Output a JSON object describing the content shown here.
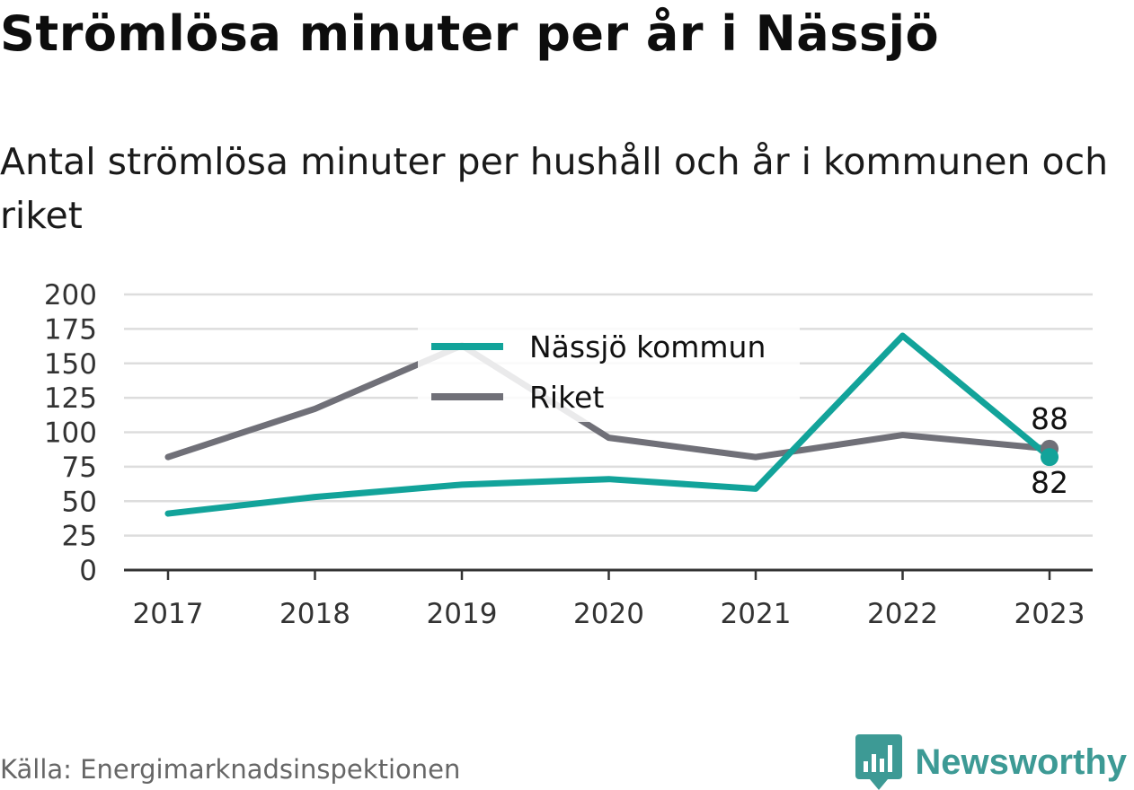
{
  "title": "Strömlösa minuter per år i Nässjö",
  "subtitle": "Antal strömlösa minuter per hushåll och år i kommunen och riket",
  "source": "Källa: Energimarknadsinspektionen",
  "brand": {
    "name": "Newsworthy",
    "icon": "newsworthy-logo-icon",
    "color": "#3d9a95"
  },
  "colors": {
    "nassjo": "#12a39a",
    "riket": "#707078",
    "grid": "#dddddd",
    "axis": "#333333"
  },
  "chart_data": {
    "type": "line",
    "x": [
      "2017",
      "2018",
      "2019",
      "2020",
      "2021",
      "2022",
      "2023"
    ],
    "yticks": [
      "0",
      "25",
      "50",
      "75",
      "100",
      "125",
      "150",
      "175",
      "200"
    ],
    "ylim": [
      0,
      200
    ],
    "grid": true,
    "legend_position": "top-center",
    "series": [
      {
        "name": "Nässjö kommun",
        "values": [
          41,
          53,
          62,
          66,
          59,
          170,
          82
        ],
        "color": "#12a39a",
        "end_label": "82"
      },
      {
        "name": "Riket",
        "values": [
          82,
          117,
          163,
          96,
          82,
          98,
          88
        ],
        "color": "#707078",
        "end_label": "88"
      }
    ]
  }
}
